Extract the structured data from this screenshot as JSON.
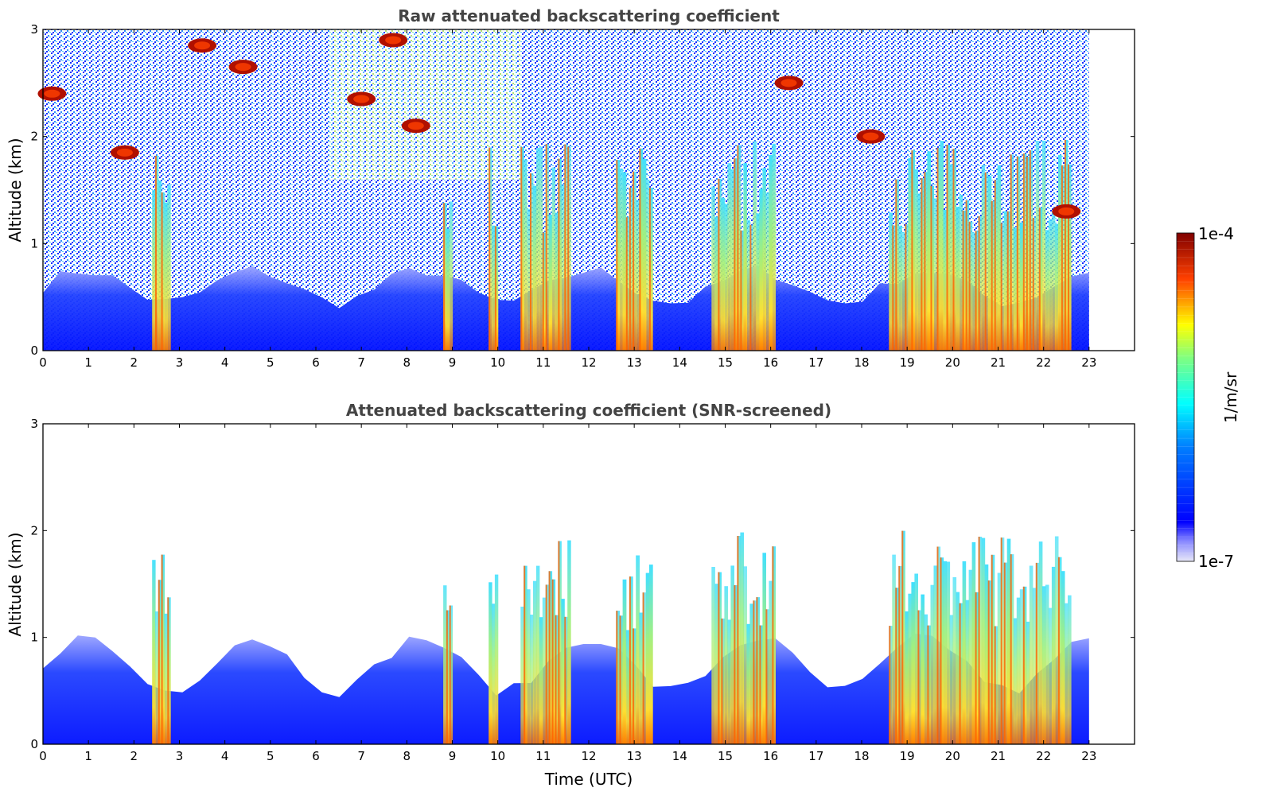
{
  "chart_data": [
    {
      "type": "heatmap",
      "title": "Raw attenuated backscattering coefficient",
      "xlabel": "",
      "ylabel": "Altitude (km)",
      "xlim": [
        0,
        24
      ],
      "ylim": [
        0,
        3
      ],
      "x_ticks": [
        "0",
        "1",
        "2",
        "3",
        "4",
        "5",
        "6",
        "7",
        "8",
        "9",
        "10",
        "11",
        "12",
        "13",
        "14",
        "15",
        "16",
        "17",
        "18",
        "19",
        "20",
        "21",
        "22",
        "23"
      ],
      "y_ticks": [
        "0",
        "1",
        "2",
        "3"
      ],
      "data_extent_hours": [
        0,
        23
      ],
      "features": [
        {
          "kind": "boundary-layer",
          "start": 0,
          "end": 23,
          "top_km": 0.6
        },
        {
          "kind": "precip-shaft",
          "start": 2.4,
          "end": 2.8
        },
        {
          "kind": "precip-shaft",
          "start": 8.8,
          "end": 9.0
        },
        {
          "kind": "precip-shaft",
          "start": 9.8,
          "end": 10.0
        },
        {
          "kind": "precip-shaft",
          "start": 10.5,
          "end": 11.6
        },
        {
          "kind": "precip-shaft",
          "start": 12.6,
          "end": 13.4
        },
        {
          "kind": "precip-shaft",
          "start": 14.7,
          "end": 16.1
        },
        {
          "kind": "precip-shaft",
          "start": 18.6,
          "end": 22.6
        },
        {
          "kind": "cloud-patch",
          "time": 0.2,
          "alt_km": 2.4
        },
        {
          "kind": "cloud-patch",
          "time": 1.8,
          "alt_km": 1.85
        },
        {
          "kind": "cloud-patch",
          "time": 3.5,
          "alt_km": 2.85
        },
        {
          "kind": "cloud-patch",
          "time": 4.4,
          "alt_km": 2.65
        },
        {
          "kind": "cloud-patch",
          "time": 7.0,
          "alt_km": 2.35
        },
        {
          "kind": "cloud-patch",
          "time": 7.7,
          "alt_km": 2.9
        },
        {
          "kind": "cloud-patch",
          "time": 8.2,
          "alt_km": 2.1
        },
        {
          "kind": "cloud-patch",
          "time": 16.4,
          "alt_km": 2.5
        },
        {
          "kind": "cloud-patch",
          "time": 18.2,
          "alt_km": 2.0
        },
        {
          "kind": "cloud-patch",
          "time": 22.5,
          "alt_km": 1.3
        }
      ]
    },
    {
      "type": "heatmap",
      "title": "Attenuated backscattering coefficient (SNR-screened)",
      "xlabel": "Time (UTC)",
      "ylabel": "Altitude (km)",
      "xlim": [
        0,
        24
      ],
      "ylim": [
        0,
        3
      ],
      "x_ticks": [
        "0",
        "1",
        "2",
        "3",
        "4",
        "5",
        "6",
        "7",
        "8",
        "9",
        "10",
        "11",
        "12",
        "13",
        "14",
        "15",
        "16",
        "17",
        "18",
        "19",
        "20",
        "21",
        "22",
        "23"
      ],
      "y_ticks": [
        "0",
        "1",
        "2",
        "3"
      ],
      "data_extent_hours": [
        0,
        23
      ],
      "features": [
        {
          "kind": "boundary-layer",
          "start": 0,
          "end": 23,
          "top_km": 0.75
        },
        {
          "kind": "precip-shaft",
          "start": 2.4,
          "end": 2.8
        },
        {
          "kind": "precip-shaft",
          "start": 8.8,
          "end": 9.0
        },
        {
          "kind": "precip-shaft",
          "start": 9.8,
          "end": 10.0
        },
        {
          "kind": "precip-shaft",
          "start": 10.5,
          "end": 11.6
        },
        {
          "kind": "precip-shaft",
          "start": 12.6,
          "end": 13.4
        },
        {
          "kind": "precip-shaft",
          "start": 14.7,
          "end": 16.1
        },
        {
          "kind": "precip-shaft",
          "start": 18.6,
          "end": 22.6
        }
      ]
    }
  ],
  "colorbar": {
    "label": "1/m/sr",
    "max_label": "1e-4",
    "min_label": "1e-7",
    "colormap": "jet",
    "colors": [
      "#e8e8f8",
      "#0000ff",
      "#00ffff",
      "#ffff00",
      "#ff0000",
      "#800000"
    ]
  }
}
